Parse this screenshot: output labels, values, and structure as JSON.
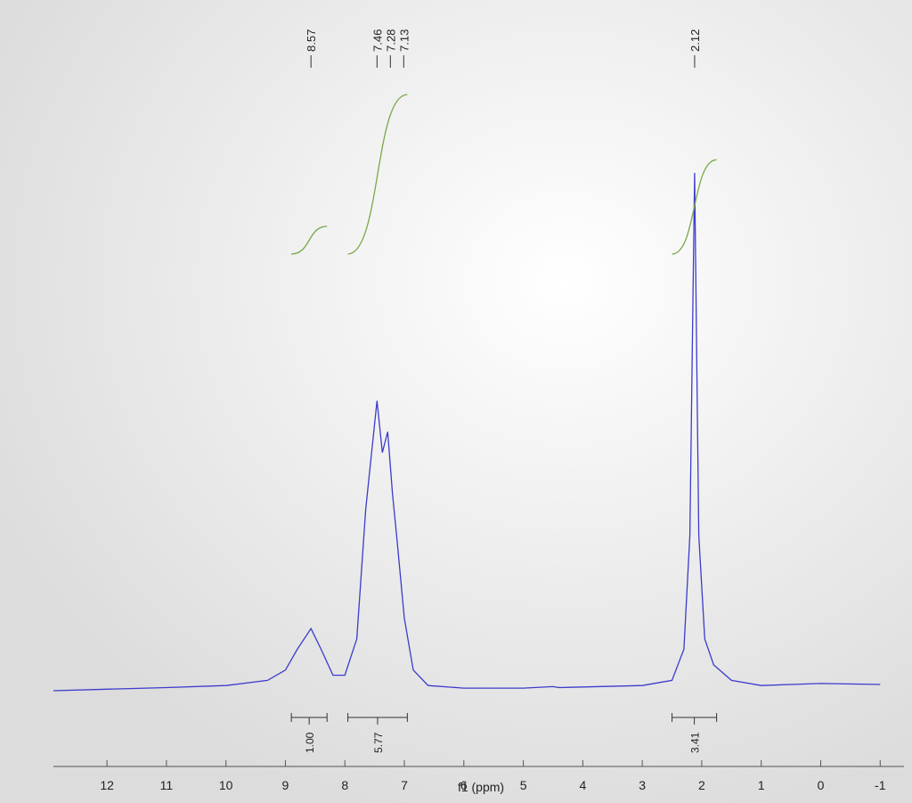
{
  "chart_data": {
    "type": "nmr",
    "x_label": "f1 (ppm)",
    "xlim": [
      12.9,
      -1.4
    ],
    "xticks": [
      12,
      11,
      10,
      9,
      8,
      7,
      6,
      5,
      4,
      3,
      2,
      1,
      0,
      -1
    ],
    "ylim": [
      0,
      105
    ],
    "color": "#3b3bcc",
    "integral_color": "#7aa84a",
    "x": [
      12.9,
      12,
      11,
      10,
      9.3,
      9.0,
      8.8,
      8.57,
      8.4,
      8.2,
      8.0,
      7.8,
      7.65,
      7.46,
      7.37,
      7.28,
      7.2,
      7.13,
      7.0,
      6.85,
      6.6,
      6.0,
      5,
      4.5,
      4.4,
      3,
      2.5,
      2.3,
      2.2,
      2.12,
      2.05,
      1.95,
      1.8,
      1.5,
      1,
      0.5,
      0,
      -1
    ],
    "values": [
      0,
      0.3,
      0.6,
      1,
      2,
      4,
      8,
      12,
      8,
      3,
      3,
      10,
      35,
      56,
      46,
      50,
      38,
      30,
      14,
      4,
      1,
      0.5,
      0.5,
      0.8,
      0.6,
      1,
      2,
      8,
      30,
      100,
      30,
      10,
      5,
      2,
      1,
      1.2,
      1.4,
      1.2
    ],
    "peak_labels": [
      8.57,
      7.46,
      7.28,
      7.13,
      2.12
    ],
    "integrals": [
      {
        "value": 1,
        "label": "1.00",
        "from": 8.9,
        "to": 8.3
      },
      {
        "value": 5.77,
        "label": "5.77",
        "from": 7.95,
        "to": 6.95
      },
      {
        "value": 3.41,
        "label": "3.41",
        "from": 2.5,
        "to": 1.75
      }
    ]
  }
}
